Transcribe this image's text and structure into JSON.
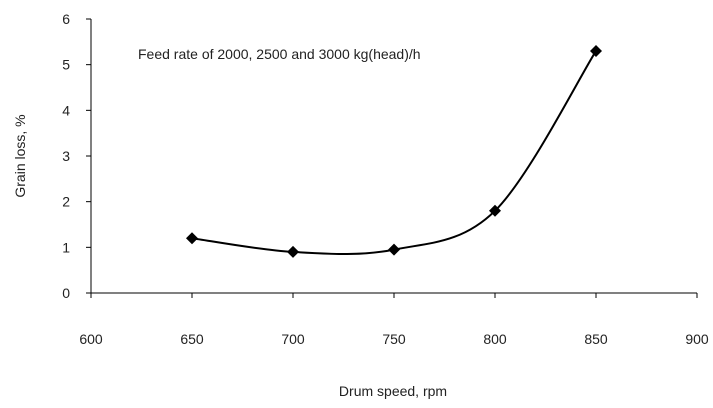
{
  "chart_data": {
    "type": "line",
    "title": "",
    "annotation": "Feed rate of 2000, 2500 and 3000 kg(head)/h",
    "xlabel": "Drum speed, rpm",
    "ylabel": "Grain loss, %",
    "xlim": [
      600,
      900
    ],
    "ylim": [
      0,
      6
    ],
    "xticks": [
      600,
      650,
      700,
      750,
      800,
      850,
      900
    ],
    "yticks": [
      0,
      1,
      2,
      3,
      4,
      5,
      6
    ],
    "grid": false,
    "smooth": true,
    "marker": "diamond",
    "series": [
      {
        "x": [
          650,
          700,
          750,
          800,
          850
        ],
        "y": [
          1.2,
          0.9,
          0.95,
          1.8,
          5.3
        ]
      }
    ]
  },
  "colors": {
    "line": "#000000",
    "marker": "#000000",
    "text": "#222222"
  }
}
